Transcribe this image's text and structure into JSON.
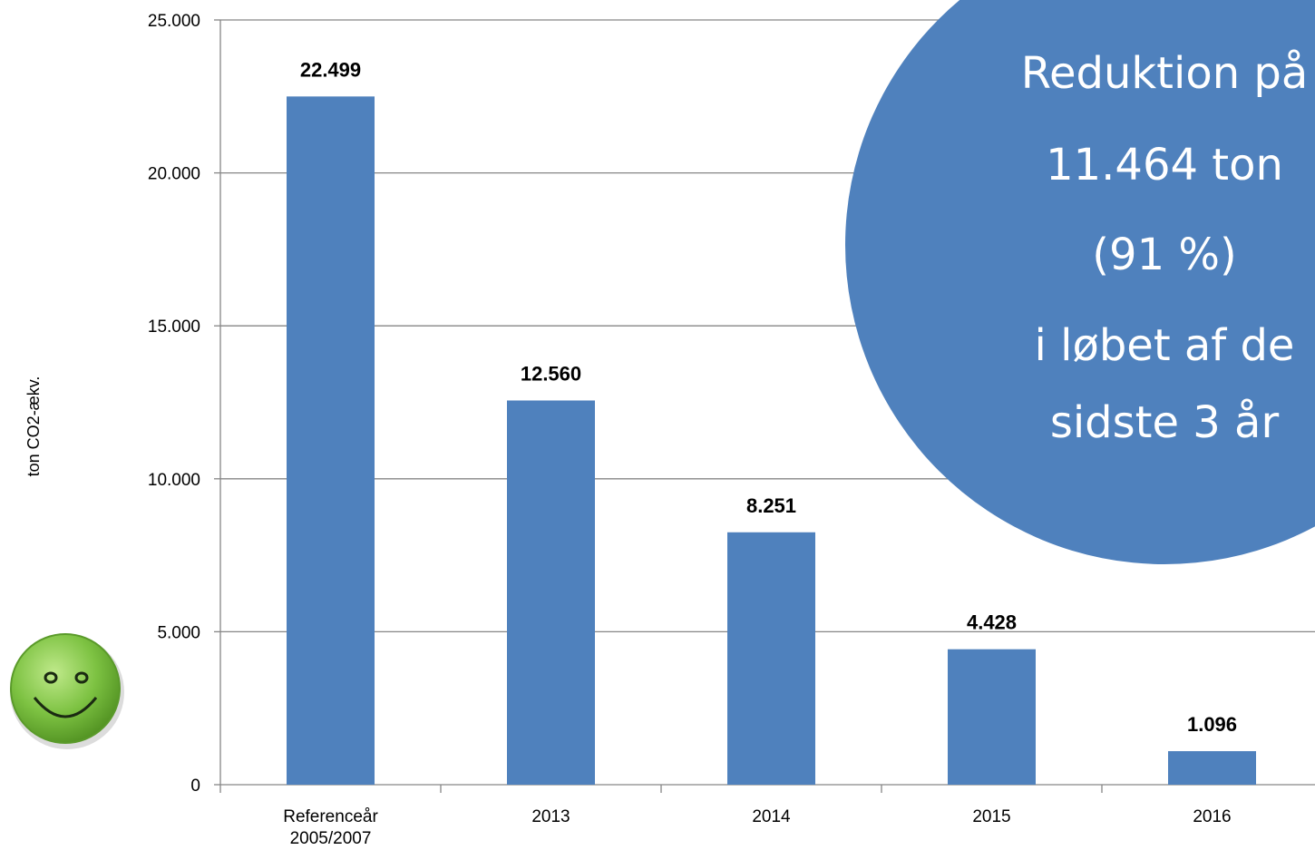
{
  "chart_data": {
    "type": "bar",
    "categories": [
      [
        "Referenceår",
        "2005/2007"
      ],
      [
        "2013"
      ],
      [
        "2014"
      ],
      [
        "2015"
      ],
      [
        "2016"
      ]
    ],
    "values": [
      22499,
      12560,
      8251,
      4428,
      1096
    ],
    "data_labels": [
      "22.499",
      "12.560",
      "8.251",
      "4.428",
      "1.096"
    ],
    "ylabel": "ton CO2-ækv.",
    "ylim": [
      0,
      25000
    ],
    "yticks": [
      0,
      5000,
      10000,
      15000,
      20000,
      25000
    ],
    "ytick_labels": [
      "0",
      "5.000",
      "10.000",
      "15.000",
      "20.000",
      "25.000"
    ],
    "bar_color": "#4F81BD",
    "grid": true
  },
  "callout": {
    "lines": [
      "Reduktion på",
      "11.464 ton",
      "(91 %)",
      "i løbet af de",
      "sidste 3 år"
    ],
    "color": "#4F81BD"
  },
  "smiley": {
    "icon": "smiley-face-icon",
    "color": "#7DC242"
  }
}
